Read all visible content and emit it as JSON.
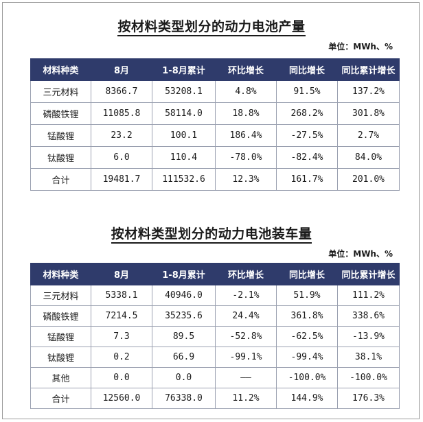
{
  "production": {
    "title": "按材料类型划分的动力电池产量",
    "unit": "单位：MWh、%",
    "headers": [
      "材料种类",
      "8月",
      "1-8月累计",
      "环比增长",
      "同比增长",
      "同比累计增长"
    ],
    "rows": [
      [
        "三元材料",
        "8366.7",
        "53208.1",
        "4.8%",
        "91.5%",
        "137.2%"
      ],
      [
        "磷酸铁锂",
        "11085.8",
        "58114.0",
        "18.8%",
        "268.2%",
        "301.8%"
      ],
      [
        "锰酸锂",
        "23.2",
        "100.1",
        "186.4%",
        "-27.5%",
        "2.7%"
      ],
      [
        "钛酸锂",
        "6.0",
        "110.4",
        "-78.0%",
        "-82.4%",
        "84.0%"
      ],
      [
        "合计",
        "19481.7",
        "111532.6",
        "12.3%",
        "161.7%",
        "201.0%"
      ]
    ]
  },
  "installed": {
    "title": "按材料类型划分的动力电池装车量",
    "unit": "单位：MWh、%",
    "headers": [
      "材料种类",
      "8月",
      "1-8月累计",
      "环比增长",
      "同比增长",
      "同比累计增长"
    ],
    "rows": [
      [
        "三元材料",
        "5338.1",
        "40946.0",
        "-2.1%",
        "51.9%",
        "111.2%"
      ],
      [
        "磷酸铁锂",
        "7214.5",
        "35235.6",
        "24.4%",
        "361.8%",
        "338.6%"
      ],
      [
        "锰酸锂",
        "7.3",
        "89.5",
        "-52.8%",
        "-62.5%",
        "-13.9%"
      ],
      [
        "钛酸锂",
        "0.2",
        "66.9",
        "-99.1%",
        "-99.4%",
        "38.1%"
      ],
      [
        "其他",
        "0.0",
        "0.0",
        "——",
        "-100.0%",
        "-100.0%"
      ],
      [
        "合计",
        "12560.0",
        "76338.0",
        "11.2%",
        "144.9%",
        "176.3%"
      ]
    ]
  }
}
